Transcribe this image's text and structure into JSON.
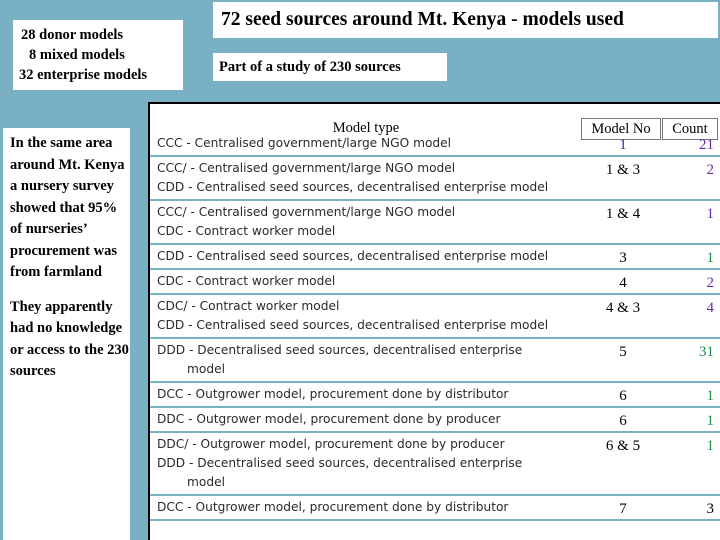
{
  "summary": {
    "lines": [
      "28 donor models",
      "8 mixed models",
      "32 enterprise models"
    ]
  },
  "title": "72 seed sources around Mt. Kenya - models used",
  "subtitle": "Part of a study of 230 sources",
  "side_notes": [
    "In the same area around Mt. Kenya a nursery survey showed that 95% of nurseries’ procurement was from farmland",
    "They apparently had no knowledge or access to the 230 sources"
  ],
  "table": {
    "headers": {
      "model_type": "Model type",
      "model_no": "Model No",
      "count": "Count"
    },
    "rows": [
      {
        "type_lines": [
          "CCC - Centralised government/large NGO model"
        ],
        "no": "1",
        "count": "21"
      },
      {
        "type_lines": [
          "CCC/ - Centralised government/large NGO model",
          "CDD - Centralised seed sources, decentralised enterprise model"
        ],
        "no": "1 & 3",
        "count": "2"
      },
      {
        "type_lines": [
          "CCC/ - Centralised government/large NGO model",
          "CDC - Contract worker model"
        ],
        "no": "1 & 4",
        "count": "1"
      },
      {
        "type_lines": [
          "CDD - Centralised seed sources, decentralised enterprise model"
        ],
        "no": "3",
        "count": "1"
      },
      {
        "type_lines": [
          "CDC - Contract worker model"
        ],
        "no": "4",
        "count": "2"
      },
      {
        "type_lines": [
          "CDC/ - Contract worker model",
          "CDD - Centralised seed sources, decentralised enterprise model"
        ],
        "no": "4 & 3",
        "count": "4"
      },
      {
        "type_lines": [
          "DDD - Decentralised seed sources, decentralised enterprise",
          "model"
        ],
        "no": "5",
        "count": "31"
      },
      {
        "type_lines": [
          "DCC - Outgrower model, procurement done by distributor"
        ],
        "no": "6",
        "count": "1"
      },
      {
        "type_lines": [
          "DDC - Outgrower model, procurement done by producer"
        ],
        "no": "6",
        "count": "1"
      },
      {
        "type_lines": [
          "DDC/ - Outgrower model, procurement done by producer",
          "DDD - Decentralised seed sources, decentralised enterprise",
          "model"
        ],
        "no": "6 & 5",
        "count": "1"
      },
      {
        "type_lines": [
          "DCC - Outgrower model, procurement done by distributor"
        ],
        "no": "7",
        "count": "3"
      }
    ]
  },
  "colors": {
    "background": "#7ab0c4",
    "model_no_first": "#1a35b8",
    "count_purple": "#6a2aa8",
    "count_green": "#1f8a4a"
  }
}
